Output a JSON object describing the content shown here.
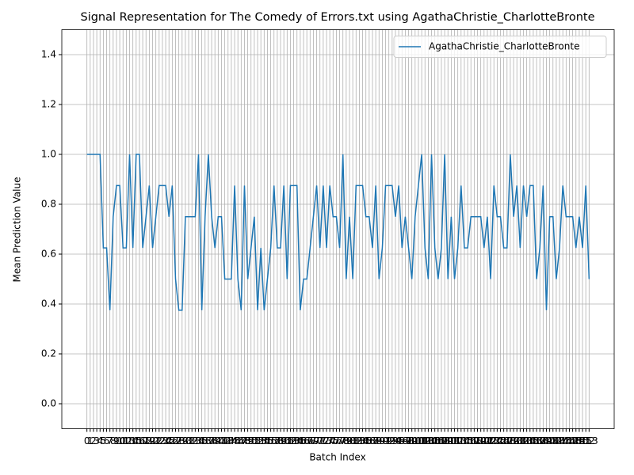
{
  "chart_data": {
    "type": "line",
    "title": "Signal Representation for The Comedy of Errors.txt using AgathaChristie_CharlotteBronte",
    "xlabel": "Batch Index",
    "ylabel": "Mean Prediction Value",
    "x": [
      0,
      1,
      2,
      3,
      4,
      5,
      6,
      7,
      8,
      9,
      10,
      11,
      12,
      13,
      14,
      15,
      16,
      17,
      18,
      19,
      20,
      21,
      22,
      23,
      24,
      25,
      26,
      27,
      28,
      29,
      30,
      31,
      32,
      33,
      34,
      35,
      36,
      37,
      38,
      39,
      40,
      41,
      42,
      43,
      44,
      45,
      46,
      47,
      48,
      49,
      50,
      51,
      52,
      53,
      54,
      55,
      56,
      57,
      58,
      59,
      60,
      61,
      62,
      63,
      64,
      65,
      66,
      67,
      68,
      69,
      70,
      71,
      72,
      73,
      74,
      75,
      76,
      77,
      78,
      79,
      80,
      81,
      82,
      83,
      84,
      85,
      86,
      87,
      88,
      89,
      90,
      91,
      92,
      93,
      94,
      95,
      96,
      97,
      98,
      99,
      100,
      101,
      102,
      103,
      104,
      105,
      106,
      107,
      108,
      109,
      110,
      111,
      112,
      113,
      114,
      115,
      116,
      117,
      118,
      119,
      120,
      121,
      122,
      123,
      124,
      125,
      126,
      127,
      128,
      129,
      130,
      131,
      132,
      133,
      134,
      135,
      136,
      137,
      138,
      139,
      140,
      141,
      142,
      143,
      144,
      145,
      146,
      147,
      148,
      149,
      150,
      151,
      152,
      153
    ],
    "series": [
      {
        "name": "AgathaChristie_CharlotteBronte",
        "color": "#1f77b4",
        "values": [
          1,
          1,
          1,
          1,
          1,
          0.625,
          0.625,
          0.375,
          0.75,
          0.875,
          0.875,
          0.625,
          0.625,
          1,
          0.625,
          1,
          1,
          0.625,
          0.75,
          0.875,
          0.625,
          0.75,
          0.875,
          0.875,
          0.875,
          0.75,
          0.875,
          0.5,
          0.375,
          0.375,
          0.75,
          0.75,
          0.75,
          0.75,
          1,
          0.375,
          0.75,
          1,
          0.75,
          0.625,
          0.75,
          0.75,
          0.5,
          0.5,
          0.5,
          0.875,
          0.5,
          0.375,
          0.875,
          0.5,
          0.625,
          0.75,
          0.375,
          0.625,
          0.375,
          0.5,
          0.625,
          0.875,
          0.625,
          0.625,
          0.875,
          0.5,
          0.875,
          0.875,
          0.875,
          0.375,
          0.5,
          0.5,
          0.625,
          0.75,
          0.875,
          0.625,
          0.875,
          0.625,
          0.875,
          0.75,
          0.75,
          0.625,
          1,
          0.5,
          0.75,
          0.5,
          0.875,
          0.875,
          0.875,
          0.75,
          0.75,
          0.625,
          0.875,
          0.5,
          0.625,
          0.875,
          0.875,
          0.875,
          0.75,
          0.875,
          0.625,
          0.75,
          0.625,
          0.5,
          0.75,
          0.875,
          1,
          0.625,
          0.5,
          1,
          0.625,
          0.5,
          0.625,
          1,
          0.5,
          0.75,
          0.5,
          0.625,
          0.875,
          0.625,
          0.625,
          0.75,
          0.75,
          0.75,
          0.75,
          0.625,
          0.75,
          0.5,
          0.875,
          0.75,
          0.75,
          0.625,
          0.625,
          1,
          0.75,
          0.875,
          0.625,
          0.875,
          0.75,
          0.875,
          0.875,
          0.5,
          0.625,
          0.875,
          0.375,
          0.75,
          0.75,
          0.5,
          0.625,
          0.875,
          0.75,
          0.75,
          0.75,
          0.625,
          0.75,
          0.625,
          0.875,
          0.5
        ]
      }
    ],
    "xlim": [
      -7.65,
      160.65
    ],
    "xticks": [
      0,
      1,
      2,
      3,
      4,
      5,
      6,
      7,
      8,
      9,
      10,
      11,
      12,
      13,
      14,
      15,
      16,
      17,
      18,
      19,
      20,
      21,
      22,
      23,
      24,
      25,
      26,
      27,
      28,
      29,
      30,
      31,
      32,
      33,
      34,
      35,
      36,
      37,
      38,
      39,
      40,
      41,
      42,
      43,
      44,
      45,
      46,
      47,
      48,
      49,
      50,
      51,
      52,
      53,
      54,
      55,
      56,
      57,
      58,
      59,
      60,
      61,
      62,
      63,
      64,
      65,
      66,
      67,
      68,
      69,
      70,
      71,
      72,
      73,
      74,
      75,
      76,
      77,
      78,
      79,
      80,
      81,
      82,
      83,
      84,
      85,
      86,
      87,
      88,
      89,
      90,
      91,
      92,
      93,
      94,
      95,
      96,
      97,
      98,
      99,
      100,
      101,
      102,
      103,
      104,
      105,
      106,
      107,
      108,
      109,
      110,
      111,
      112,
      113,
      114,
      115,
      116,
      117,
      118,
      119,
      120,
      121,
      122,
      123,
      124,
      125,
      126,
      127,
      128,
      129,
      130,
      131,
      132,
      133,
      134,
      135,
      136,
      137,
      138,
      139,
      140,
      141,
      142,
      143,
      144,
      145,
      146,
      147,
      148,
      149,
      150,
      151,
      152,
      153
    ],
    "ylim": [
      -0.1,
      1.5
    ],
    "yticks": [
      {
        "value": 0,
        "label": "0.0"
      },
      {
        "value": 0.2,
        "label": "0.2"
      },
      {
        "value": 0.4,
        "label": "0.4"
      },
      {
        "value": 0.6,
        "label": "0.6"
      },
      {
        "value": 0.8,
        "label": "0.8"
      },
      {
        "value": 1,
        "label": "1.0"
      },
      {
        "value": 1.2,
        "label": "1.2"
      },
      {
        "value": 1.4,
        "label": "1.4"
      }
    ],
    "grid": true,
    "legend": "upper-right"
  }
}
